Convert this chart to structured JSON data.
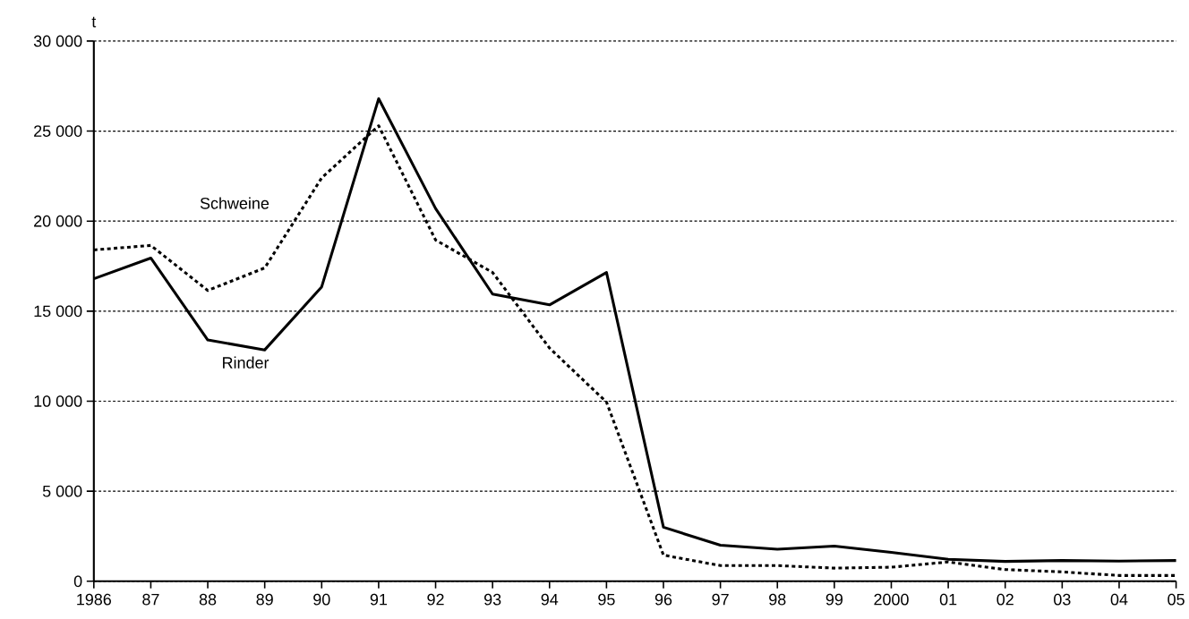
{
  "chart_data": {
    "type": "line",
    "ylabel": "t",
    "x": [
      1986,
      1987,
      1988,
      1989,
      1990,
      1991,
      1992,
      1993,
      1994,
      1995,
      1996,
      1997,
      1998,
      1999,
      2000,
      2001,
      2002,
      2003,
      2004,
      2005
    ],
    "series": [
      {
        "name": "Schweine",
        "color": "#000000",
        "line_style": "dotted",
        "values": [
          18400,
          18650,
          16150,
          17400,
          22400,
          25300,
          18950,
          17150,
          12950,
          9950,
          1450,
          870,
          870,
          730,
          780,
          1070,
          650,
          520,
          320,
          320
        ]
      },
      {
        "name": "Rinder",
        "color": "#000000",
        "line_style": "solid",
        "values": [
          16800,
          17950,
          13400,
          12850,
          16350,
          26800,
          20700,
          15950,
          15350,
          17150,
          3000,
          2000,
          1780,
          1950,
          1600,
          1220,
          1100,
          1150,
          1120,
          1150
        ]
      }
    ],
    "xlim": [
      1986,
      2005
    ],
    "xticks": [
      {
        "value": 1986,
        "label": "1986"
      },
      {
        "value": 1987,
        "label": "87"
      },
      {
        "value": 1988,
        "label": "88"
      },
      {
        "value": 1989,
        "label": "89"
      },
      {
        "value": 1990,
        "label": "90"
      },
      {
        "value": 1991,
        "label": "91"
      },
      {
        "value": 1992,
        "label": "92"
      },
      {
        "value": 1993,
        "label": "93"
      },
      {
        "value": 1994,
        "label": "94"
      },
      {
        "value": 1995,
        "label": "95"
      },
      {
        "value": 1996,
        "label": "96"
      },
      {
        "value": 1997,
        "label": "97"
      },
      {
        "value": 1998,
        "label": "98"
      },
      {
        "value": 1999,
        "label": "99"
      },
      {
        "value": 2000,
        "label": "2000"
      },
      {
        "value": 2001,
        "label": "01"
      },
      {
        "value": 2002,
        "label": "02"
      },
      {
        "value": 2003,
        "label": "03"
      },
      {
        "value": 2004,
        "label": "04"
      },
      {
        "value": 2005,
        "label": "05"
      }
    ],
    "ylim": [
      0,
      30000
    ],
    "yticks": [
      {
        "value": 0,
        "label": "0"
      },
      {
        "value": 5000,
        "label": "5 000"
      },
      {
        "value": 10000,
        "label": "10 000"
      },
      {
        "value": 15000,
        "label": "15 000"
      },
      {
        "value": 20000,
        "label": "20 000"
      },
      {
        "value": 25000,
        "label": "25 000"
      },
      {
        "value": 30000,
        "label": "30 000"
      }
    ],
    "grid": "y",
    "legend": false
  }
}
